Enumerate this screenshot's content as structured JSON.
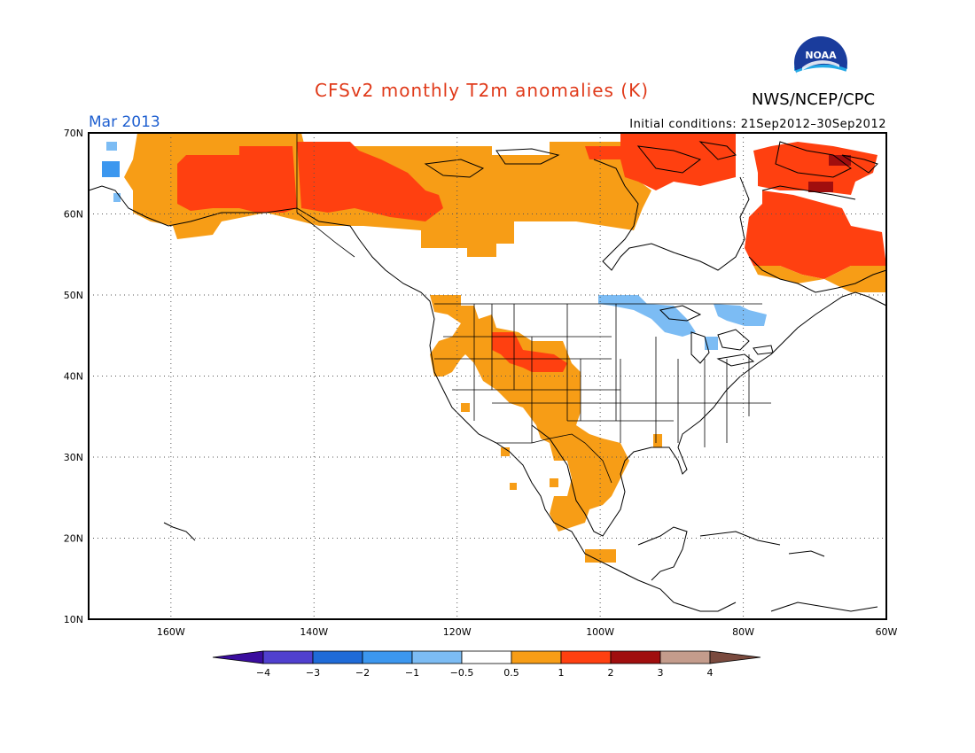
{
  "header": {
    "title": "CFSv2 monthly T2m anomalies (K)",
    "agency": "NWS/NCEP/CPC",
    "month": "Mar 2013",
    "initial_conditions": "Initial conditions: 21Sep2012–30Sep2012"
  },
  "logo": {
    "text": "NOAA"
  },
  "map": {
    "lat_labels": [
      "70N",
      "60N",
      "50N",
      "40N",
      "30N",
      "20N",
      "10N"
    ],
    "lon_labels": [
      "160W",
      "140W",
      "120W",
      "100W",
      "80W",
      "60W"
    ],
    "lon_range": [
      -171.5,
      -60
    ],
    "lat_range": [
      10,
      70
    ]
  },
  "colorbar": {
    "labels": [
      "−4",
      "−3",
      "−2",
      "−1",
      "−0.5",
      "0.5",
      "1",
      "2",
      "3",
      "4"
    ],
    "colors": [
      "#3a0d9e",
      "#5040cf",
      "#1f6bd8",
      "#3c97ef",
      "#7cbcf4",
      "#ffffff",
      "#f79d16",
      "#ff4010",
      "#a00e0e",
      "#c49c8c",
      "#7a4a3e"
    ]
  },
  "colors": {
    "warm_1": "#f79d16",
    "warm_2": "#ff4010",
    "warm_3": "#a00e0e",
    "cool_1": "#7cbcf4",
    "cool_2": "#3c97ef",
    "title_red": "#e03a1a",
    "month_blue": "#1e5fd0"
  }
}
